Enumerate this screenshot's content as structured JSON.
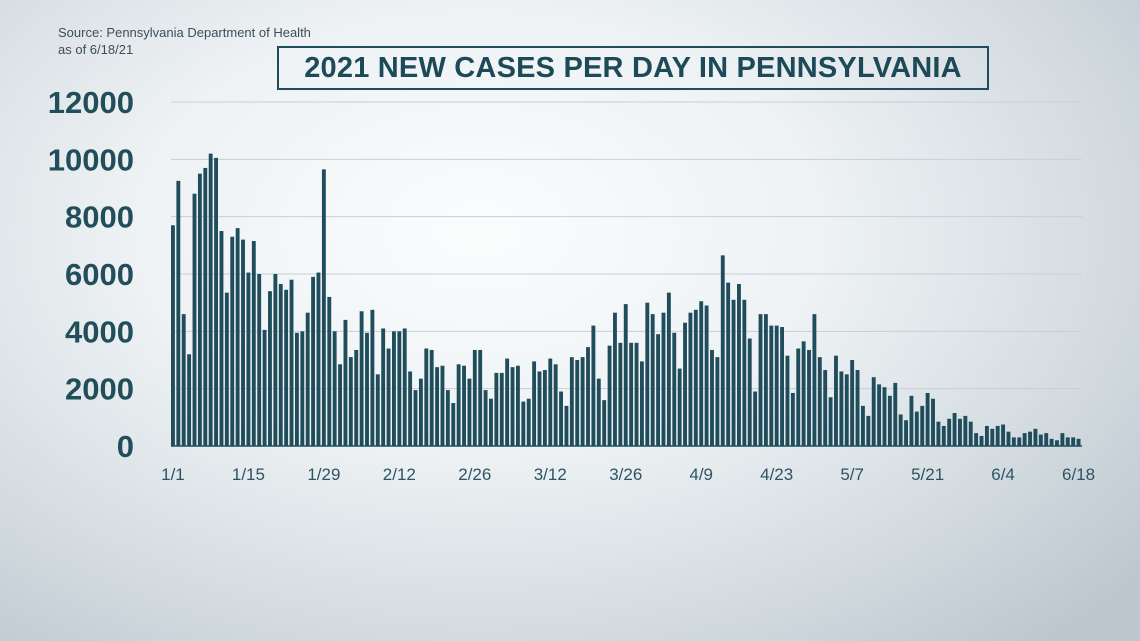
{
  "source": {
    "line1": "Source: Pennsylvania Department of Health",
    "line2": "as of 6/18/21"
  },
  "colors": {
    "bar": "#1f4d5c",
    "grid": "#c6d0d5"
  },
  "chart_data": {
    "type": "bar",
    "title": "2021 NEW CASES PER DAY IN PENNSYLVANIA",
    "xlabel": "",
    "ylabel": "",
    "ylim": [
      0,
      12000
    ],
    "yticks": [
      0,
      2000,
      4000,
      6000,
      8000,
      10000,
      12000
    ],
    "ytick_labels": [
      "0",
      "2000",
      "4000",
      "6000",
      "8000",
      "10000",
      "12000"
    ],
    "grid": true,
    "xtick_labels": [
      {
        "label": "1/1",
        "index": 0
      },
      {
        "label": "1/15",
        "index": 14
      },
      {
        "label": "1/29",
        "index": 28
      },
      {
        "label": "2/12",
        "index": 42
      },
      {
        "label": "2/26",
        "index": 56
      },
      {
        "label": "3/12",
        "index": 70
      },
      {
        "label": "3/26",
        "index": 84
      },
      {
        "label": "4/9",
        "index": 98
      },
      {
        "label": "4/23",
        "index": 112
      },
      {
        "label": "5/7",
        "index": 126
      },
      {
        "label": "5/21",
        "index": 140
      },
      {
        "label": "6/4",
        "index": 154
      },
      {
        "label": "6/18",
        "index": 168
      }
    ],
    "x_start": "1/1",
    "x_end": "6/18",
    "values": [
      7700,
      9250,
      4600,
      3200,
      8800,
      9500,
      9700,
      10200,
      10050,
      7500,
      5350,
      7300,
      7600,
      7200,
      6050,
      7150,
      6000,
      4050,
      5400,
      6000,
      5650,
      5450,
      5800,
      3950,
      4000,
      4650,
      5900,
      6050,
      9650,
      5200,
      4000,
      2850,
      4400,
      3100,
      3350,
      4700,
      3950,
      4750,
      2500,
      4100,
      3400,
      4000,
      4000,
      4100,
      2600,
      1950,
      2350,
      3400,
      3350,
      2750,
      2800,
      1950,
      1500,
      2850,
      2800,
      2350,
      3350,
      3350,
      1950,
      1650,
      2550,
      2550,
      3050,
      2750,
      2800,
      1550,
      1650,
      2950,
      2600,
      2650,
      3050,
      2850,
      1900,
      1400,
      3100,
      3000,
      3100,
      3450,
      4200,
      2350,
      1600,
      3500,
      4650,
      3600,
      4950,
      3600,
      3600,
      2950,
      5000,
      4600,
      3900,
      4650,
      5350,
      3950,
      2700,
      4300,
      4650,
      4750,
      5050,
      4900,
      3350,
      3100,
      6650,
      5700,
      5100,
      5650,
      5100,
      3750,
      1900,
      4600,
      4600,
      4200,
      4200,
      4150,
      3150,
      1850,
      3400,
      3650,
      3350,
      4600,
      3100,
      2650,
      1700,
      3150,
      2600,
      2500,
      3000,
      2650,
      1400,
      1050,
      2400,
      2150,
      2050,
      1750,
      2200,
      1100,
      900,
      1750,
      1200,
      1400,
      1850,
      1650,
      850,
      700,
      950,
      1150,
      950,
      1050,
      850,
      450,
      350,
      700,
      600,
      700,
      750,
      500,
      300,
      300,
      450,
      500,
      600,
      400,
      450,
      250,
      200,
      450,
      300,
      300,
      250
    ]
  }
}
